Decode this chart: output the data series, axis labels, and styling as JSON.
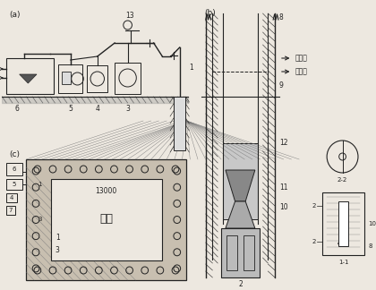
{
  "bg_color": "#ede8e0",
  "line_color": "#222222",
  "label_a": "(a)",
  "label_b": "(b)",
  "label_c": "(c)",
  "label_gaoya": "高压水",
  "label_dixia": "地下水",
  "label_jikeng": "基坑",
  "label_13000": "13000",
  "figw": 4.2,
  "figh": 3.24,
  "dpi": 100
}
